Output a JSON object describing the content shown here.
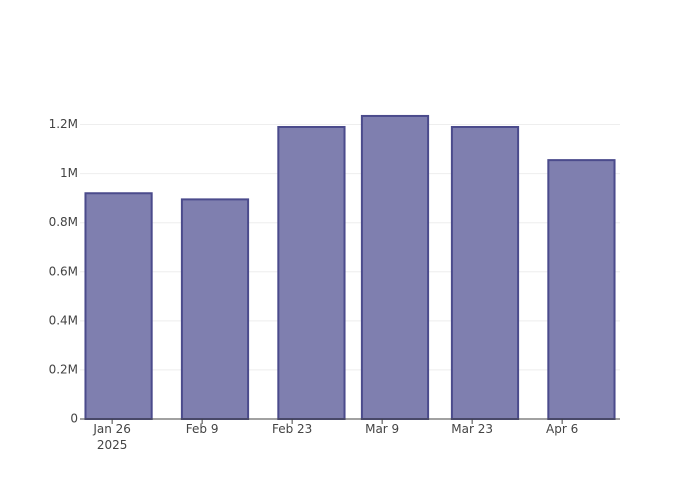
{
  "chart_data": {
    "type": "bar",
    "x": [
      "2025-01-27",
      "2025-02-11",
      "2025-02-26",
      "2025-03-11",
      "2025-03-25",
      "2025-04-09"
    ],
    "values": [
      920000,
      895000,
      1190000,
      1235000,
      1190000,
      1055000
    ],
    "color": "#7f7faf",
    "edge_color": "#4b4b8c",
    "xlim": [
      "2025-01-21",
      "2025-04-15"
    ],
    "xticks": [
      {
        "value": "2025-01-26",
        "label": "Jan 26\n2025"
      },
      {
        "value": "2025-02-09",
        "label": "Feb 9"
      },
      {
        "value": "2025-02-23",
        "label": "Feb 23"
      },
      {
        "value": "2025-03-09",
        "label": "Mar 9"
      },
      {
        "value": "2025-03-23",
        "label": "Mar 23"
      },
      {
        "value": "2025-04-06",
        "label": "Apr 6"
      }
    ],
    "ylim": [
      0,
      1300000
    ],
    "yticks": [
      0,
      {
        "value": 200000,
        "label": "0.2M"
      },
      {
        "value": 400000,
        "label": "0.4M"
      },
      {
        "value": 600000,
        "label": "0.6M"
      },
      {
        "value": 800000,
        "label": "0.8M"
      },
      {
        "value": 1000000,
        "label": "1M"
      },
      {
        "value": 1200000,
        "label": "1.2M"
      }
    ],
    "grid": true
  }
}
